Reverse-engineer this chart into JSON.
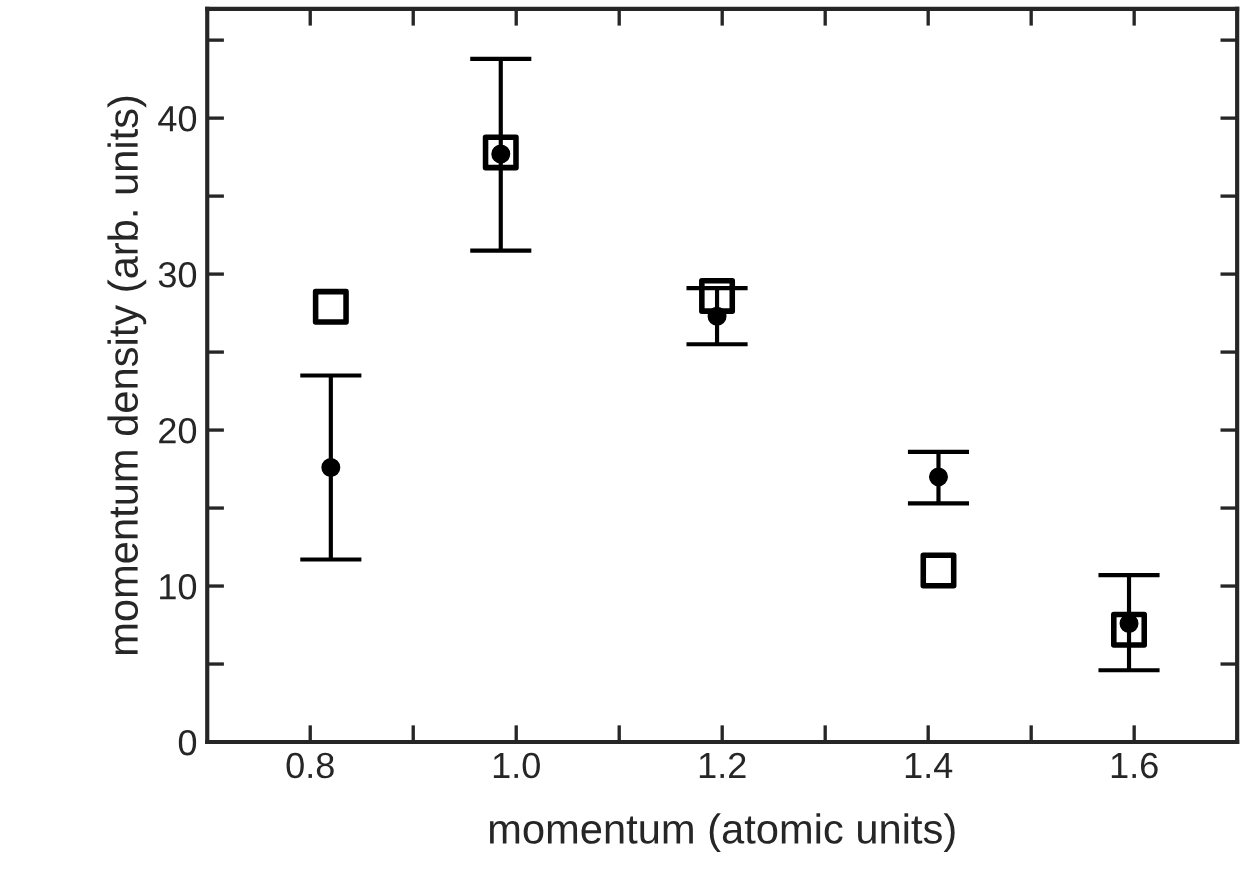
{
  "chart_data": {
    "type": "scatter",
    "xlabel": "momentum (atomic units)",
    "ylabel": "momentum density (arb. units)",
    "xlim": [
      0.7,
      1.7
    ],
    "ylim": [
      0,
      47
    ],
    "xticks": [
      0.8,
      {
        "value": 0.9,
        "label": null
      },
      {
        "value": 1.0,
        "label": "1.0"
      },
      {
        "value": 1.1,
        "label": null
      },
      1.2,
      {
        "value": 1.3,
        "label": null
      },
      1.4,
      {
        "value": 1.5,
        "label": null
      },
      1.6
    ],
    "yticks": [
      0,
      {
        "value": 5,
        "label": null
      },
      10,
      {
        "value": 15,
        "label": null
      },
      20,
      {
        "value": 25,
        "label": null
      },
      30,
      {
        "value": 35,
        "label": null
      },
      40,
      {
        "value": 45,
        "label": null
      }
    ],
    "grid": false,
    "legend": false,
    "series": [
      {
        "marker": "square",
        "color": "#000000",
        "x": [
          0.82,
          0.985,
          1.195,
          1.41,
          1.595
        ],
        "values": [
          27.9,
          37.8,
          28.6,
          11.0,
          7.2
        ]
      },
      {
        "marker": "circle",
        "color": "#000000",
        "x": [
          0.82,
          0.985,
          1.195,
          1.41,
          1.595
        ],
        "values": [
          17.6,
          37.7,
          27.3,
          17.0,
          7.6
        ],
        "errors": [
          [
            11.7,
            23.5
          ],
          [
            31.5,
            43.8
          ],
          [
            25.5,
            29.1
          ],
          [
            15.3,
            18.6
          ],
          [
            4.6,
            10.7
          ]
        ]
      }
    ]
  }
}
